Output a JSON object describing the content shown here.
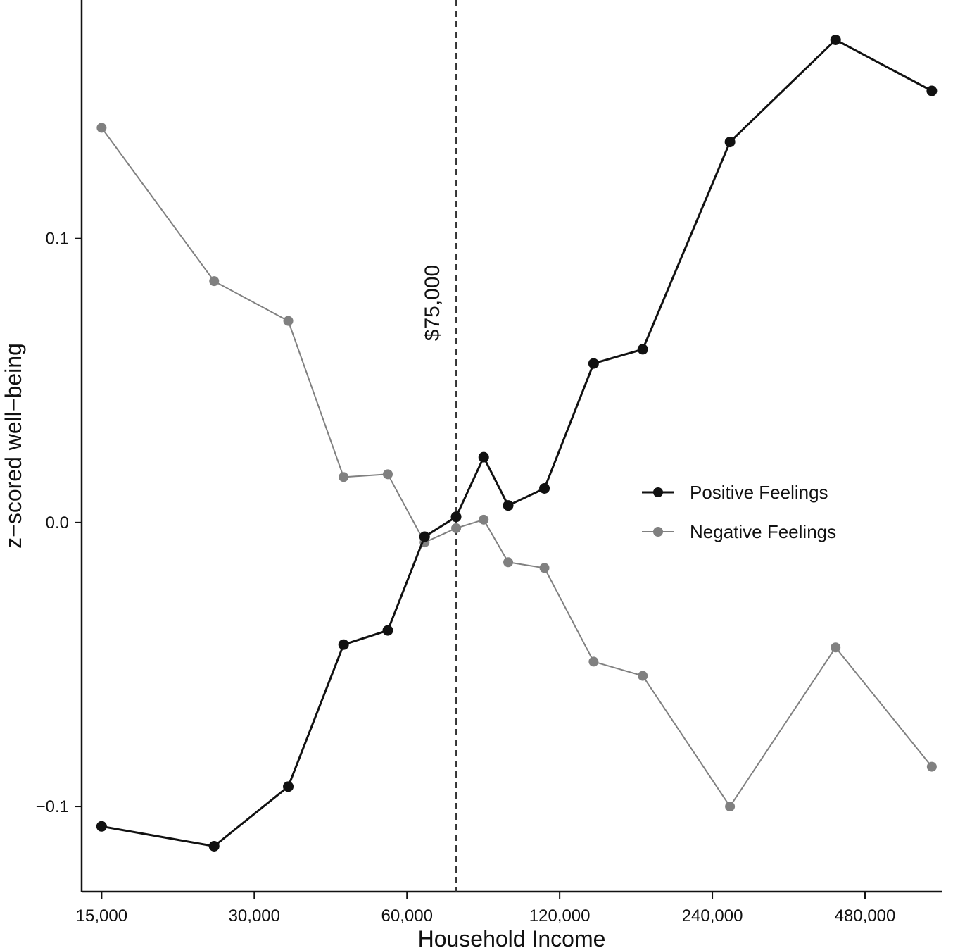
{
  "chart_data": {
    "type": "line",
    "xlabel": "Household Income",
    "ylabel": "z−scored well−being",
    "x_scale": "log",
    "x_ticks": [
      {
        "value": 15000,
        "label": "15,000"
      },
      {
        "value": 30000,
        "label": "30,000"
      },
      {
        "value": 60000,
        "label": "60,000"
      },
      {
        "value": 120000,
        "label": "120,000"
      },
      {
        "value": 240000,
        "label": "240,000"
      },
      {
        "value": 480000,
        "label": "480,000"
      }
    ],
    "y_ticks": [
      {
        "value": 0.1,
        "label": "0.1"
      },
      {
        "value": 0.0,
        "label": "0.0"
      },
      {
        "value": -0.1,
        "label": "−0.1"
      }
    ],
    "xlim": [
      13700,
      680000
    ],
    "ylim": [
      -0.13,
      0.184
    ],
    "reference_line": {
      "x": 75000,
      "label": "$75,000",
      "style": "dashed"
    },
    "legend_position": "right",
    "grid": false,
    "x": [
      15000,
      25000,
      35000,
      45000,
      55000,
      65000,
      75000,
      85000,
      95000,
      112000,
      140000,
      175000,
      260000,
      420000,
      650000
    ],
    "series": [
      {
        "name": "Positive Feelings",
        "color": "#111111",
        "values": [
          -0.107,
          -0.114,
          -0.093,
          -0.043,
          -0.038,
          -0.005,
          0.002,
          0.023,
          0.006,
          0.012,
          0.056,
          0.061,
          0.134,
          0.17,
          0.152
        ]
      },
      {
        "name": "Negative Feelings",
        "color": "#808080",
        "values": [
          0.139,
          0.085,
          0.071,
          0.016,
          0.017,
          -0.007,
          -0.002,
          0.001,
          -0.014,
          -0.016,
          -0.049,
          -0.054,
          -0.1,
          -0.044,
          -0.086
        ]
      }
    ]
  }
}
